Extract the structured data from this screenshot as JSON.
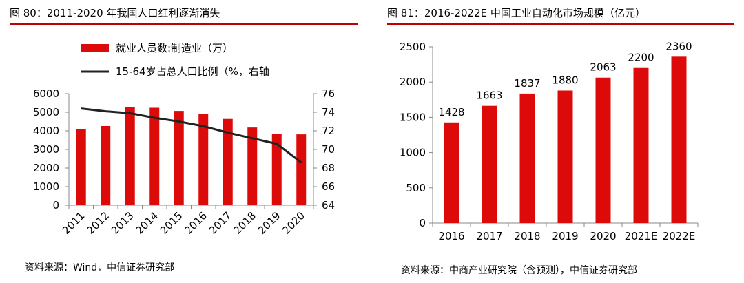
{
  "left": {
    "title": "图 80：2011-2020 年我国人口红利逐渐消失",
    "source": "资料来源：Wind，中信证券研究部"
  },
  "right": {
    "title": "图 81：2016-2022E 中国工业自动化市场规模（亿元）",
    "source": "资料来源：中商产业研究院（含预测），中信证券研究部"
  },
  "colors": {
    "bar": "#dd0a0a",
    "line": "#222222",
    "rule": "#c00000"
  },
  "chart_data": [
    {
      "type": "bar",
      "categories": [
        "2011",
        "2012",
        "2013",
        "2014",
        "2015",
        "2016",
        "2017",
        "2018",
        "2019",
        "2020"
      ],
      "series": [
        {
          "name": "就业人员数:制造业（万）",
          "type": "bar",
          "axis": "left",
          "values": [
            4090,
            4260,
            5260,
            5240,
            5070,
            4890,
            4640,
            4180,
            3830,
            3810
          ]
        },
        {
          "name": "15-64岁占总人口比例（%，右轴",
          "type": "line",
          "axis": "right",
          "values": [
            74.4,
            74.1,
            73.9,
            73.4,
            73.0,
            72.5,
            71.8,
            71.2,
            70.6,
            68.6
          ]
        }
      ],
      "ylim": [
        0,
        6000
      ],
      "yticks": [
        0,
        1000,
        2000,
        3000,
        4000,
        5000,
        6000
      ],
      "y2lim": [
        64,
        76
      ],
      "y2ticks": [
        64,
        66,
        68,
        70,
        72,
        74,
        76
      ],
      "legend": "top-left",
      "grid": false
    },
    {
      "type": "bar",
      "categories": [
        "2016",
        "2017",
        "2018",
        "2019",
        "2020",
        "2021E",
        "2022E"
      ],
      "values": [
        1428,
        1663,
        1837,
        1880,
        2063,
        2200,
        2360
      ],
      "data_labels": [
        "1428",
        "1663",
        "1837",
        "1880",
        "2063",
        "2200",
        "2360"
      ],
      "ylim": [
        0,
        2500
      ],
      "yticks": [
        0,
        500,
        1000,
        1500,
        2000,
        2500
      ],
      "grid": false
    }
  ]
}
